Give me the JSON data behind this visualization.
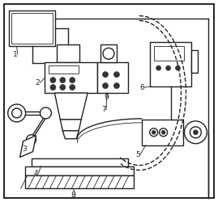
{
  "bg_color": "#ffffff",
  "lc": "#222222",
  "lw": 1.0,
  "lw_thin": 0.6,
  "lw_thick": 1.4
}
